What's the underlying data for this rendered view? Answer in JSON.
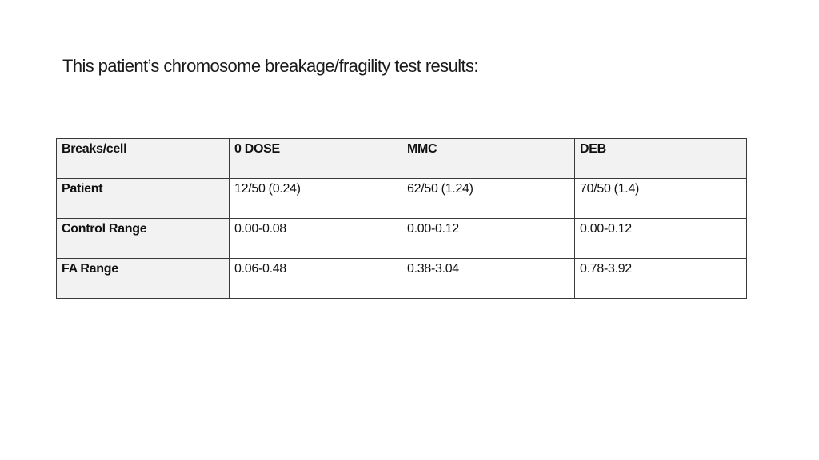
{
  "title": "This patient’s chromosome breakage/fragility test results:",
  "table": {
    "headers": [
      "Breaks/cell",
      "0 DOSE",
      "MMC",
      "DEB"
    ],
    "rows": [
      {
        "label": "Patient",
        "values": [
          "12/50 (0.24)",
          "62/50 (1.24)",
          "70/50 (1.4)"
        ]
      },
      {
        "label": "Control Range",
        "values": [
          "0.00-0.08",
          "0.00-0.12",
          "0.00-0.12"
        ]
      },
      {
        "label": "FA Range",
        "values": [
          "0.06-0.48",
          "0.38-3.04",
          "0.78-3.92"
        ]
      }
    ]
  }
}
